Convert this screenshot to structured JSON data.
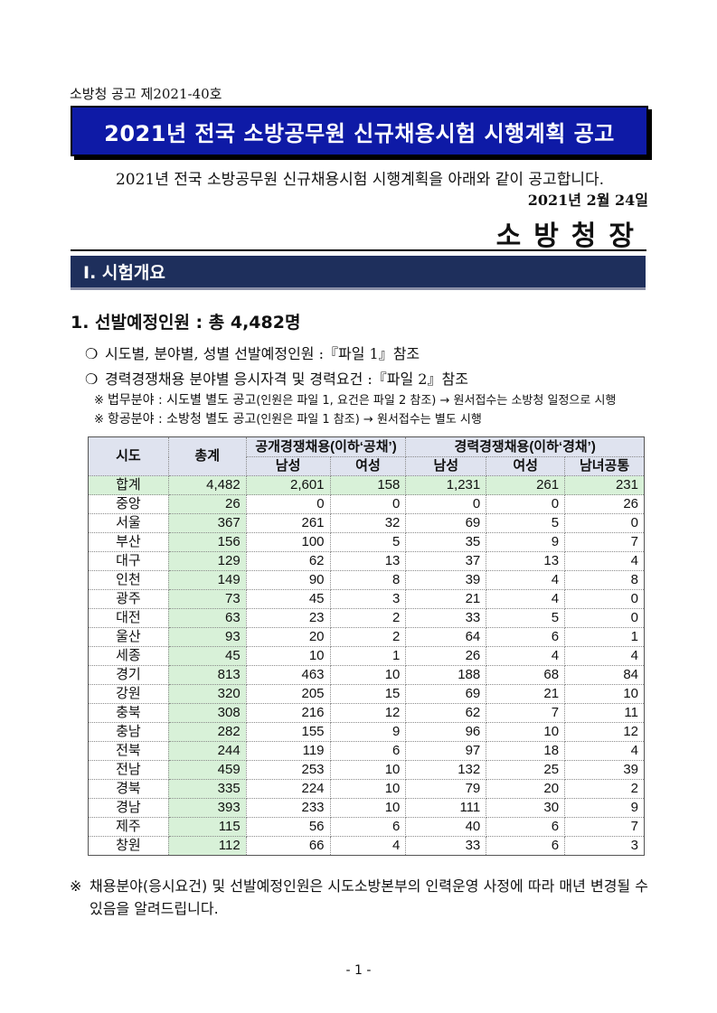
{
  "notice_number": "소방청 공고 제2021-40호",
  "title": "2021년 전국 소방공무원 신규채용시험 시행계획 공고",
  "intro": "2021년 전국 소방공무원 신규채용시험 시행계획을 아래와 같이 공고합니다.",
  "date": "2021년 2월 24일",
  "signer": "소방청장",
  "section": "Ⅰ. 시험개요",
  "heading": "1. 선발예정인원 : 총 4,482명",
  "bullets": [
    "시도별, 분야별, 성별 선발예정인원 :『파일 1』참조",
    "경력경쟁채용 분야별 응시자격 및 경력요건 :『파일 2』참조"
  ],
  "bullet_symbol": "❍",
  "notes": [
    {
      "mark": "※",
      "main": "법무분야 : 시도별 별도 공고",
      "detail": "(인원은 파일 1, 요건은 파일 2 참조) → 원서접수는 소방청 일정으로 시행"
    },
    {
      "mark": "※",
      "main": "항공분야 : 소방청 별도 공고",
      "detail": "(인원은 파일 1 참조) → 원서접수는 별도 시행"
    }
  ],
  "table": {
    "headers": {
      "region": "시도",
      "total": "총계",
      "open": "공개경쟁채용(이하‘공채’)",
      "career": "경력경쟁채용(이하‘경채’)",
      "male": "남성",
      "female": "여성",
      "both": "남녀공통"
    },
    "rows": [
      [
        "합계",
        "4,482",
        "2,601",
        "158",
        "1,231",
        "261",
        "231"
      ],
      [
        "중앙",
        "26",
        "0",
        "0",
        "0",
        "0",
        "26"
      ],
      [
        "서울",
        "367",
        "261",
        "32",
        "69",
        "5",
        "0"
      ],
      [
        "부산",
        "156",
        "100",
        "5",
        "35",
        "9",
        "7"
      ],
      [
        "대구",
        "129",
        "62",
        "13",
        "37",
        "13",
        "4"
      ],
      [
        "인천",
        "149",
        "90",
        "8",
        "39",
        "4",
        "8"
      ],
      [
        "광주",
        "73",
        "45",
        "3",
        "21",
        "4",
        "0"
      ],
      [
        "대전",
        "63",
        "23",
        "2",
        "33",
        "5",
        "0"
      ],
      [
        "울산",
        "93",
        "20",
        "2",
        "64",
        "6",
        "1"
      ],
      [
        "세종",
        "45",
        "10",
        "1",
        "26",
        "4",
        "4"
      ],
      [
        "경기",
        "813",
        "463",
        "10",
        "188",
        "68",
        "84"
      ],
      [
        "강원",
        "320",
        "205",
        "15",
        "69",
        "21",
        "10"
      ],
      [
        "충북",
        "308",
        "216",
        "12",
        "62",
        "7",
        "11"
      ],
      [
        "충남",
        "282",
        "155",
        "9",
        "96",
        "10",
        "12"
      ],
      [
        "전북",
        "244",
        "119",
        "6",
        "97",
        "18",
        "4"
      ],
      [
        "전남",
        "459",
        "253",
        "10",
        "132",
        "25",
        "39"
      ],
      [
        "경북",
        "335",
        "224",
        "10",
        "79",
        "20",
        "2"
      ],
      [
        "경남",
        "393",
        "233",
        "10",
        "111",
        "30",
        "9"
      ],
      [
        "제주",
        "115",
        "56",
        "6",
        "40",
        "6",
        "7"
      ],
      [
        "창원",
        "112",
        "66",
        "4",
        "33",
        "6",
        "3"
      ]
    ]
  },
  "footnote": {
    "mark": "※",
    "text": "채용분야(응시요건) 및 선발예정인원은 시도소방본부의 인력운영 사정에 따라 매년 변경될 수 있음을 알려드립니다."
  },
  "page_number": "- 1 -",
  "colors": {
    "title_bg": "#0e1aa6",
    "section_bg": "#1e2f5c",
    "header_bg": "#dfe3ef",
    "total_bg": "#d8f1d8"
  }
}
